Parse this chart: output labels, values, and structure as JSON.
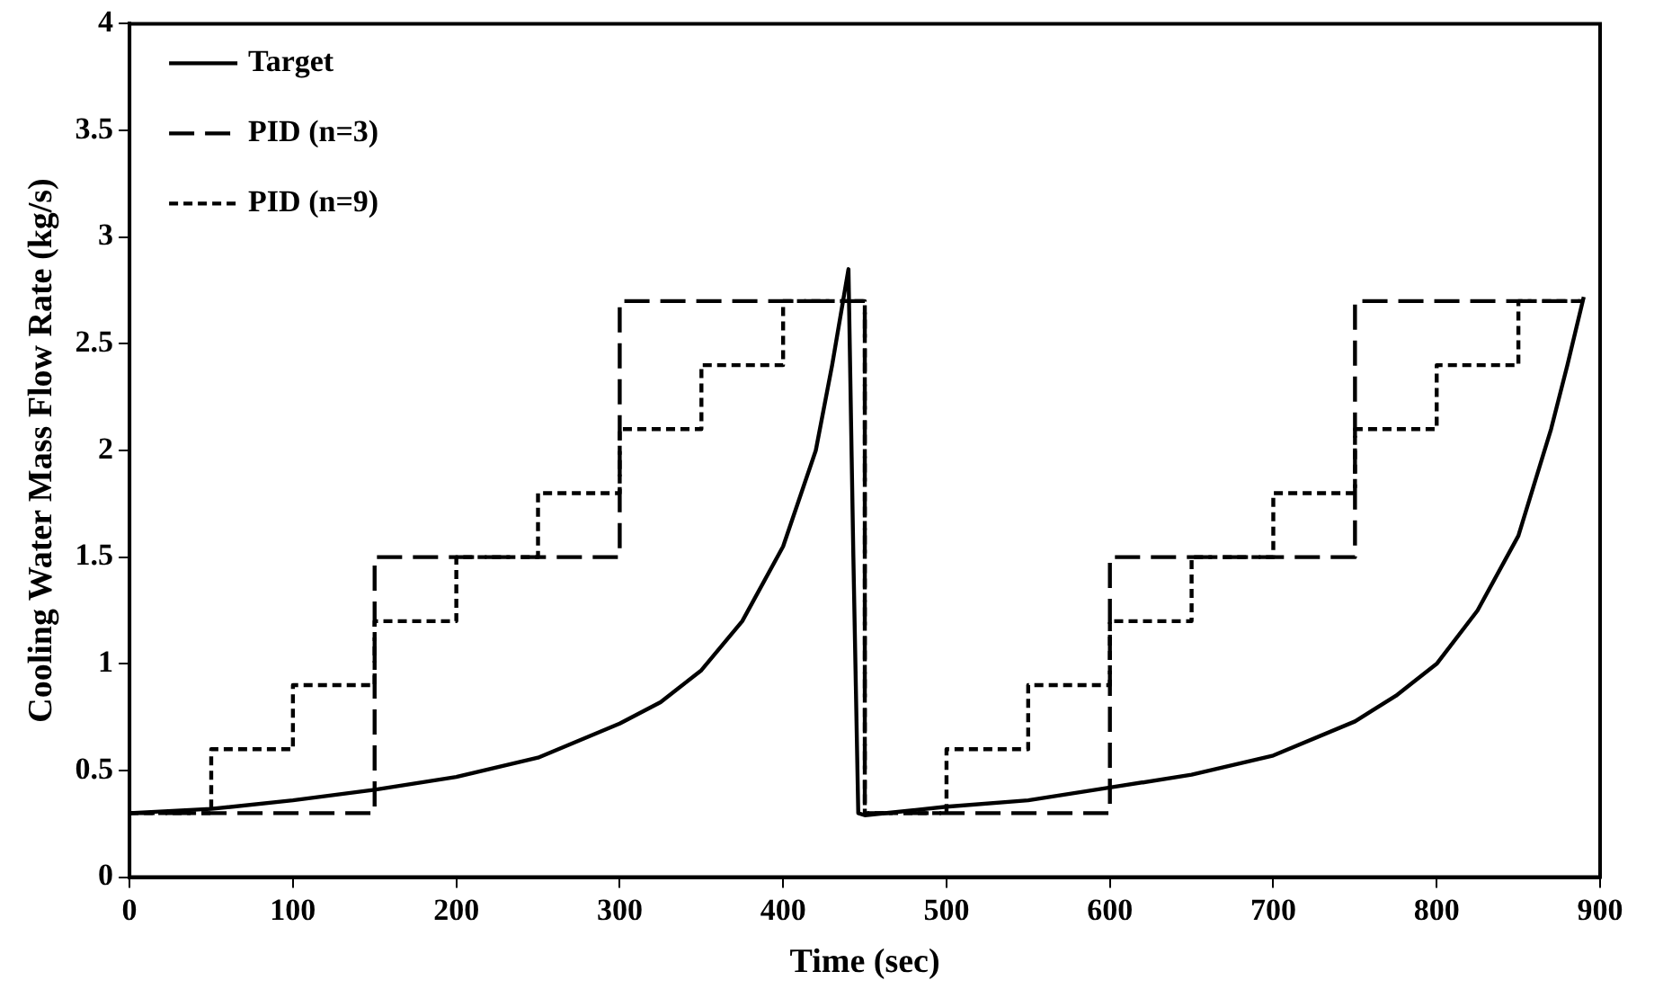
{
  "chart_data": {
    "type": "line",
    "xlabel": "Time (sec)",
    "ylabel": "Cooling Water Mass Flow Rate (kg/s)",
    "xlim": [
      0,
      900
    ],
    "xticks": [
      0,
      100,
      200,
      300,
      400,
      500,
      600,
      700,
      800,
      900
    ],
    "ylim": [
      0,
      4
    ],
    "yticks": [
      0,
      0.5,
      1,
      1.5,
      2,
      2.5,
      3,
      3.5,
      4
    ],
    "grid": false,
    "legend": "top left",
    "marker": "none",
    "series": [
      {
        "name": "Target",
        "color": "#000000",
        "line_style": "solid",
        "x": [
          0,
          50,
          100,
          150,
          200,
          250,
          300,
          325,
          350,
          375,
          400,
          420,
          430,
          440,
          443,
          446,
          450,
          500,
          550,
          600,
          650,
          700,
          750,
          775,
          800,
          825,
          850,
          870,
          880,
          890
        ],
        "values": [
          0.3,
          0.32,
          0.36,
          0.41,
          0.47,
          0.56,
          0.72,
          0.82,
          0.97,
          1.2,
          1.55,
          2.0,
          2.4,
          2.85,
          1.5,
          0.3,
          0.29,
          0.33,
          0.36,
          0.42,
          0.48,
          0.57,
          0.73,
          0.85,
          1.0,
          1.25,
          1.6,
          2.1,
          2.4,
          2.72
        ]
      },
      {
        "name": "PID (n=3)",
        "color": "#000000",
        "line_style": "dashed",
        "x": [
          0,
          150,
          150,
          300,
          300,
          450,
          450,
          600,
          600,
          750,
          750,
          890
        ],
        "values": [
          0.3,
          0.3,
          1.5,
          1.5,
          2.7,
          2.7,
          0.3,
          0.3,
          1.5,
          1.5,
          2.7,
          2.7
        ]
      },
      {
        "name": "PID (n=9)",
        "color": "#000000",
        "line_style": "dotted",
        "x": [
          0,
          50,
          50,
          100,
          100,
          150,
          150,
          200,
          200,
          250,
          250,
          300,
          300,
          350,
          350,
          400,
          400,
          450,
          450,
          500,
          500,
          550,
          550,
          600,
          600,
          650,
          650,
          700,
          700,
          750,
          750,
          800,
          800,
          850,
          850,
          890
        ],
        "values": [
          0.3,
          0.3,
          0.6,
          0.6,
          0.9,
          0.9,
          1.2,
          1.2,
          1.5,
          1.5,
          1.8,
          1.8,
          2.1,
          2.1,
          2.4,
          2.4,
          2.7,
          2.7,
          0.3,
          0.3,
          0.6,
          0.6,
          0.9,
          0.9,
          1.2,
          1.2,
          1.5,
          1.5,
          1.8,
          1.8,
          2.1,
          2.1,
          2.4,
          2.4,
          2.7,
          2.7
        ]
      }
    ]
  }
}
